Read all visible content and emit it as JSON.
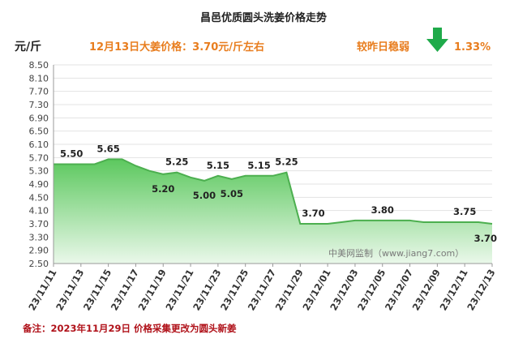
{
  "chart_data": {
    "type": "area",
    "title": "昌邑优质圆头洗姜价格走势",
    "ylabel": "元/斤",
    "ylim": [
      2.5,
      8.5
    ],
    "yticks": [
      "8.50",
      "8.10",
      "7.70",
      "7.30",
      "6.90",
      "6.50",
      "6.10",
      "5.70",
      "5.30",
      "4.90",
      "4.50",
      "4.10",
      "3.70",
      "3.30",
      "2.90",
      "2.50"
    ],
    "x": [
      "2023-11-11",
      "2023-11-12",
      "2023-11-13",
      "2023-11-14",
      "2023-11-15",
      "2023-11-16",
      "2023-11-17",
      "2023-11-18",
      "2023-11-19",
      "2023-11-20",
      "2023-11-21",
      "2023-11-22",
      "2023-11-23",
      "2023-11-24",
      "2023-11-25",
      "2023-11-26",
      "2023-11-27",
      "2023-11-28",
      "2023-11-29",
      "2023-11-30",
      "2023-12-01",
      "2023-12-02",
      "2023-12-03",
      "2023-12-04",
      "2023-12-05",
      "2023-12-06",
      "2023-12-07",
      "2023-12-08",
      "2023-12-09",
      "2023-12-10",
      "2023-12-11",
      "2023-12-12",
      "2023-12-13"
    ],
    "values": [
      5.5,
      5.5,
      5.5,
      5.5,
      5.65,
      5.65,
      5.45,
      5.3,
      5.2,
      5.25,
      5.1,
      5.0,
      5.15,
      5.05,
      5.15,
      5.15,
      5.15,
      5.25,
      3.7,
      3.7,
      3.7,
      3.75,
      3.8,
      3.8,
      3.8,
      3.8,
      3.8,
      3.75,
      3.75,
      3.75,
      3.75,
      3.75,
      3.7
    ],
    "xtick_labels": [
      "23/11/11",
      "23/11/13",
      "23/11/15",
      "23/11/17",
      "23/11/19",
      "23/11/21",
      "23/11/23",
      "23/11/25",
      "23/11/27",
      "23/11/29",
      "23/12/01",
      "23/12/03",
      "23/12/05",
      "23/12/07",
      "23/12/09",
      "23/12/11",
      "23/12/13"
    ],
    "data_labels": [
      {
        "x": "2023-11-11",
        "text": "5.50"
      },
      {
        "x": "2023-11-15",
        "text": "5.65"
      },
      {
        "x": "2023-11-19",
        "text": "5.20"
      },
      {
        "x": "2023-11-20",
        "text": "5.25"
      },
      {
        "x": "2023-11-22",
        "text": "5.00"
      },
      {
        "x": "2023-11-23",
        "text": "5.15"
      },
      {
        "x": "2023-11-24",
        "text": "5.05"
      },
      {
        "x": "2023-11-26",
        "text": "5.15"
      },
      {
        "x": "2023-11-28",
        "text": "5.25"
      },
      {
        "x": "2023-11-29",
        "text": "3.70"
      },
      {
        "x": "2023-12-05",
        "text": "3.80"
      },
      {
        "x": "2023-12-11",
        "text": "3.75"
      },
      {
        "x": "2023-12-13",
        "text": "3.70"
      }
    ],
    "colors": {
      "line": "#4caf4f",
      "fill_top": "#5cc85e",
      "fill_bottom": "#eaf8ea",
      "arrow": "#1faa4a",
      "info": "#e87d1e",
      "note": "#b0121a"
    }
  },
  "annotations": {
    "price_info": "12月13日大姜价格：3.70元/斤左右",
    "change_label": "较昨日稳弱",
    "change_value": "1.33%",
    "change_direction_icon": "down-arrow-icon",
    "watermark": "中美网监制（www.jiang7.com）",
    "note": "备注：2023年11月29日 价格采集更改为圆头新姜"
  }
}
